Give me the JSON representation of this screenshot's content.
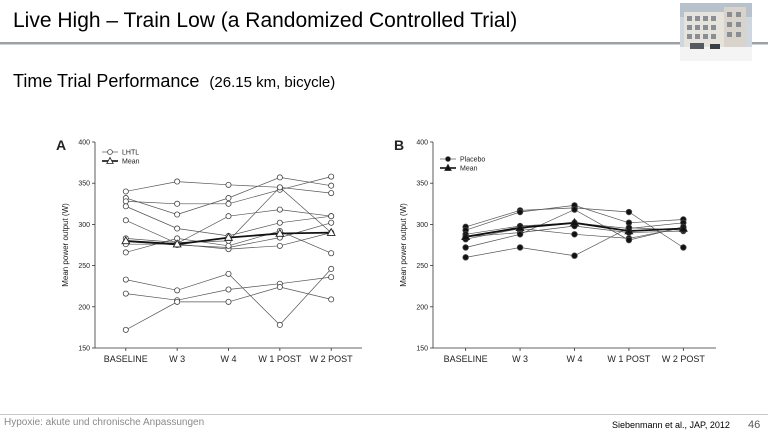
{
  "slide": {
    "title": "Live High – Train Low (a Randomized Controlled Trial)",
    "subtitle": "Time Trial Performance",
    "subtitle_detail": "(26.15 km, bicycle)",
    "footer_left": "Hypoxie: akute und chronische Anpassungen",
    "citation": "Siebenmann et al., JAP, 2012",
    "page_number": "46",
    "photo_icon": "building-photo"
  },
  "chart_data": [
    {
      "type": "line",
      "panel_label": "A",
      "ylabel": "Mean power output (W)",
      "ylim": [
        150,
        400
      ],
      "yticks": [
        150,
        200,
        250,
        300,
        350,
        400
      ],
      "categories": [
        "BASELINE",
        "W 3",
        "W 4",
        "W 1 POST",
        "W 2 POST"
      ],
      "legend": [
        {
          "label": "LHTL",
          "marker": "open-circle"
        },
        {
          "label": "Mean",
          "marker": "open-triangle"
        }
      ],
      "marker": "open-circle",
      "series": [
        {
          "values": [
            340,
            352,
            348,
            345,
            338
          ]
        },
        {
          "values": [
            332,
            312,
            332,
            357,
            347
          ]
        },
        {
          "values": [
            328,
            325,
            325,
            342,
            358
          ]
        },
        {
          "values": [
            322,
            295,
            286,
            302,
            310
          ]
        },
        {
          "values": [
            305,
            277,
            310,
            318,
            310
          ]
        },
        {
          "values": [
            283,
            278,
            280,
            345,
            290
          ]
        },
        {
          "values": [
            279,
            275,
            272,
            284,
            302
          ]
        },
        {
          "values": [
            276,
            276,
            270,
            274,
            290
          ]
        },
        {
          "values": [
            266,
            283,
            274,
            292,
            265
          ]
        },
        {
          "values": [
            233,
            220,
            240,
            178,
            246
          ]
        },
        {
          "values": [
            216,
            208,
            221,
            228,
            236
          ]
        },
        {
          "values": [
            172,
            206,
            206,
            224,
            209
          ]
        }
      ],
      "mean": {
        "values": [
          280,
          276,
          284,
          289,
          290
        ]
      }
    },
    {
      "type": "line",
      "panel_label": "B",
      "ylabel": "Mean power output (W)",
      "ylim": [
        150,
        400
      ],
      "yticks": [
        150,
        200,
        250,
        300,
        350,
        400
      ],
      "categories": [
        "BASELINE",
        "W 3",
        "W 4",
        "W 1 POST",
        "W 2 POST"
      ],
      "legend": [
        {
          "label": "Placebo",
          "marker": "filled-circle"
        },
        {
          "label": "Mean",
          "marker": "filled-triangle"
        }
      ],
      "marker": "filled-circle",
      "series": [
        {
          "values": [
            297,
            317,
            320,
            315,
            272
          ]
        },
        {
          "values": [
            293,
            315,
            323,
            302,
            306
          ]
        },
        {
          "values": [
            288,
            298,
            302,
            295,
            302
          ]
        },
        {
          "values": [
            285,
            290,
            298,
            290,
            292
          ]
        },
        {
          "values": [
            282,
            295,
            288,
            283,
            296
          ]
        },
        {
          "values": [
            272,
            288,
            318,
            281,
            297
          ]
        },
        {
          "values": [
            260,
            272,
            262,
            296,
            293
          ]
        }
      ],
      "mean": {
        "values": [
          285,
          296,
          302,
          292,
          295
        ]
      }
    }
  ]
}
